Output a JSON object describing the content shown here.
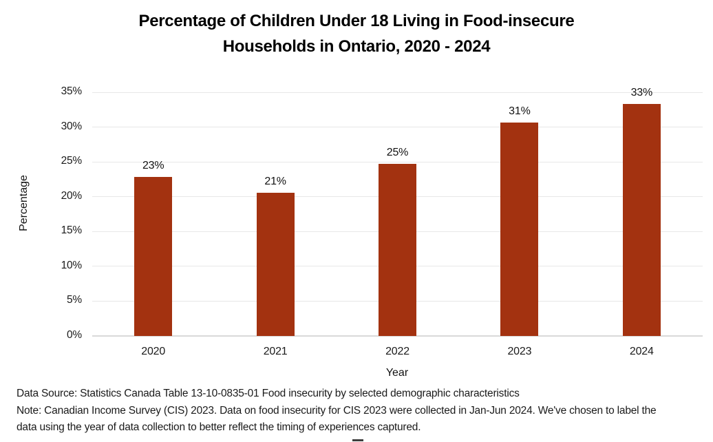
{
  "page": {
    "background": "#FFFFFF"
  },
  "title": {
    "line1": "Percentage of Children Under 18 Living in Food-insecure",
    "line2": "Households in Ontario, 2020 - 2024"
  },
  "chart_data": {
    "type": "bar",
    "title": "Percentage of Children Under 18 Living in Food-insecure Households in Ontario, 2020 - 2024",
    "categories": [
      "2020",
      "2021",
      "2022",
      "2023",
      "2024"
    ],
    "values": [
      22.8,
      20.6,
      24.7,
      30.7,
      33.3
    ],
    "bar_labels": [
      "23%",
      "21%",
      "25%",
      "31%",
      "33%"
    ],
    "xlabel": "Year",
    "ylabel": "Percentage",
    "ylim": [
      0,
      35
    ],
    "ytick_step": 5,
    "ytick_labels": [
      "0%",
      "5%",
      "10%",
      "15%",
      "20%",
      "25%",
      "30%",
      "35%"
    ],
    "grid": true,
    "legend_position": "none",
    "colors": {
      "bar": "#A33210",
      "gridline": "#E7E7E7",
      "axis_line": "#D9D9D9",
      "label_text": "#111111"
    }
  },
  "footer": {
    "line1": "Data Source: Statistics Canada Table 13-10-0835-01 Food insecurity by selected demographic characteristics",
    "line2": "Note: Canadian Income Survey (CIS) 2023. Data on food insecurity for CIS 2023 were collected in Jan-Jun 2024. We've chosen to label the",
    "line3": "data using the year of data collection to better reflect the timing of experiences captured."
  }
}
